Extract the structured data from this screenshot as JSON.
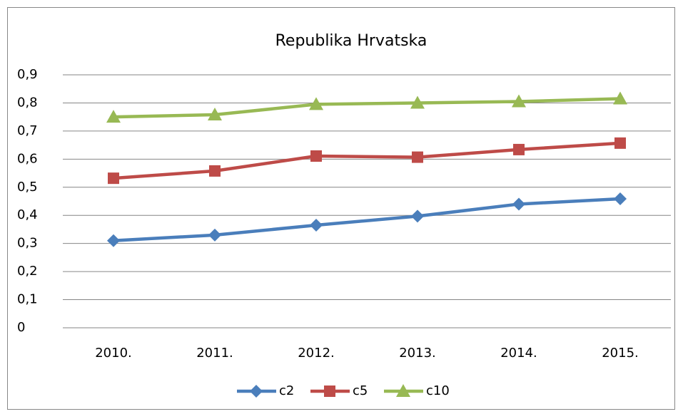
{
  "chart_data": {
    "type": "line",
    "title": "Republika Hrvatska",
    "categories": [
      "2010.",
      "2011.",
      "2012.",
      "2013.",
      "2014.",
      "2015."
    ],
    "series": [
      {
        "name": "c2",
        "color": "#4a7ebb",
        "marker": "diamond",
        "values": [
          0.31,
          0.33,
          0.365,
          0.397,
          0.44,
          0.459
        ]
      },
      {
        "name": "c5",
        "color": "#be4b48",
        "marker": "square",
        "values": [
          0.532,
          0.558,
          0.611,
          0.607,
          0.634,
          0.657
        ]
      },
      {
        "name": "c10",
        "color": "#98b954",
        "marker": "triangle",
        "values": [
          0.75,
          0.758,
          0.795,
          0.8,
          0.805,
          0.815
        ]
      }
    ],
    "ylim": [
      0,
      0.9
    ],
    "yticks": [
      0,
      {
        "value": 0.1,
        "label": "0,1"
      },
      {
        "value": 0.2,
        "label": "0,2"
      },
      {
        "value": 0.3,
        "label": "0,3"
      },
      {
        "value": 0.4,
        "label": "0,4"
      },
      {
        "value": 0.5,
        "label": "0,5"
      },
      {
        "value": 0.6,
        "label": "0,6"
      },
      {
        "value": 0.7,
        "label": "0,7"
      },
      {
        "value": 0.8,
        "label": "0,8"
      },
      {
        "value": 0.9,
        "label": "0,9"
      }
    ],
    "grid": true,
    "legend": "bottom"
  }
}
